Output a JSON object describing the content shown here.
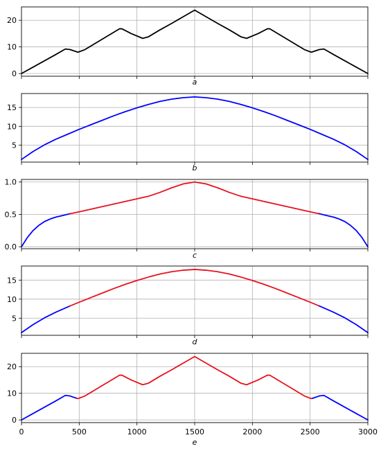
{
  "chart_data": [
    {
      "type": "line",
      "label": "a",
      "xlim": [
        0,
        3000
      ],
      "ylim": [
        -1,
        25
      ],
      "yticks": [
        0,
        10,
        20
      ],
      "ytick_labels": [
        "0",
        "10",
        "20"
      ],
      "xticks": [
        0,
        500,
        1000,
        1500,
        2000,
        2500,
        3000
      ],
      "xtick_labels": [],
      "grid": true,
      "series": [
        {
          "color": "#000000",
          "x": [
            0,
            100,
            200,
            300,
            380,
            420,
            490,
            550,
            650,
            750,
            850,
            870,
            950,
            1050,
            1100,
            1200,
            1300,
            1400,
            1500,
            1600,
            1700,
            1800,
            1900,
            1950,
            2050,
            2130,
            2150,
            2250,
            2350,
            2450,
            2510,
            2580,
            2620,
            2700,
            2800,
            2900,
            3000
          ],
          "y": [
            0,
            2.4,
            4.8,
            7.2,
            9.2,
            9.0,
            8.0,
            9.0,
            11.6,
            14.2,
            16.8,
            16.8,
            15.0,
            13.2,
            13.8,
            16.4,
            18.8,
            21.3,
            23.8,
            21.3,
            18.8,
            16.4,
            13.8,
            13.2,
            15.0,
            16.8,
            16.8,
            14.2,
            11.6,
            9.0,
            8.0,
            9.0,
            9.2,
            7.2,
            4.8,
            2.4,
            0
          ]
        }
      ]
    },
    {
      "type": "line",
      "label": "b",
      "xlim": [
        0,
        3000
      ],
      "ylim": [
        0.5,
        18.7
      ],
      "yticks": [
        5,
        10,
        15
      ],
      "ytick_labels": [
        "5",
        "10",
        "15"
      ],
      "xticks": [
        0,
        500,
        1000,
        1500,
        2000,
        2500,
        3000
      ],
      "xtick_labels": [],
      "grid": true,
      "series": [
        {
          "color": "#0000ff",
          "x": [
            0,
            100,
            200,
            300,
            400,
            500,
            600,
            700,
            800,
            900,
            1000,
            1100,
            1200,
            1300,
            1400,
            1500,
            1600,
            1700,
            1800,
            1900,
            2000,
            2100,
            2200,
            2300,
            2400,
            2500,
            2600,
            2700,
            2800,
            2900,
            3000
          ],
          "y": [
            1.2,
            3.3,
            5.1,
            6.6,
            7.9,
            9.2,
            10.4,
            11.6,
            12.8,
            13.9,
            14.9,
            15.8,
            16.6,
            17.2,
            17.6,
            17.8,
            17.6,
            17.2,
            16.6,
            15.8,
            14.9,
            13.9,
            12.8,
            11.6,
            10.4,
            9.2,
            7.9,
            6.6,
            5.1,
            3.3,
            1.2
          ]
        }
      ]
    },
    {
      "type": "line",
      "label": "c",
      "xlim": [
        0,
        3000
      ],
      "ylim": [
        -0.03,
        1.04
      ],
      "yticks": [
        0,
        0.5,
        1.0
      ],
      "ytick_labels": [
        "0.0",
        "0.5",
        "1.0"
      ],
      "xticks": [
        0,
        500,
        1000,
        1500,
        2000,
        2500,
        3000
      ],
      "xtick_labels": [],
      "grid": true,
      "series": [
        {
          "color": "#0000ff",
          "x": [
            0,
            50,
            100,
            150,
            200,
            250,
            300,
            350,
            420
          ],
          "y": [
            0,
            0.14,
            0.25,
            0.33,
            0.39,
            0.43,
            0.46,
            0.48,
            0.51
          ]
        },
        {
          "color": "#e8101c",
          "x": [
            420,
            500,
            600,
            700,
            800,
            900,
            1000,
            1100,
            1200,
            1300,
            1400,
            1500,
            1600,
            1700,
            1800,
            1900,
            2000,
            2100,
            2200,
            2300,
            2400,
            2500,
            2580
          ],
          "y": [
            0.51,
            0.54,
            0.58,
            0.62,
            0.66,
            0.7,
            0.74,
            0.78,
            0.84,
            0.91,
            0.97,
            1.0,
            0.97,
            0.91,
            0.84,
            0.78,
            0.74,
            0.7,
            0.66,
            0.62,
            0.58,
            0.54,
            0.51
          ]
        },
        {
          "color": "#0000ff",
          "x": [
            2580,
            2650,
            2700,
            2750,
            2800,
            2850,
            2900,
            2950,
            3000
          ],
          "y": [
            0.51,
            0.48,
            0.46,
            0.43,
            0.39,
            0.33,
            0.25,
            0.14,
            0
          ]
        }
      ]
    },
    {
      "type": "line",
      "label": "d",
      "xlim": [
        0,
        3000
      ],
      "ylim": [
        0.5,
        18.7
      ],
      "yticks": [
        5,
        10,
        15
      ],
      "ytick_labels": [
        "5",
        "10",
        "15"
      ],
      "xticks": [
        0,
        500,
        1000,
        1500,
        2000,
        2500,
        3000
      ],
      "xtick_labels": [],
      "grid": true,
      "series": [
        {
          "color": "#0000ff",
          "x": [
            0,
            100,
            200,
            300,
            420
          ],
          "y": [
            1.2,
            3.3,
            5.1,
            6.6,
            8.2
          ]
        },
        {
          "color": "#e8101c",
          "x": [
            420,
            500,
            600,
            700,
            800,
            900,
            1000,
            1100,
            1200,
            1300,
            1400,
            1500,
            1600,
            1700,
            1800,
            1900,
            2000,
            2100,
            2200,
            2300,
            2400,
            2500,
            2580
          ],
          "y": [
            8.2,
            9.2,
            10.4,
            11.6,
            12.8,
            13.9,
            14.9,
            15.8,
            16.6,
            17.2,
            17.6,
            17.8,
            17.6,
            17.2,
            16.6,
            15.8,
            14.9,
            13.9,
            12.8,
            11.6,
            10.4,
            9.2,
            8.2
          ]
        },
        {
          "color": "#0000ff",
          "x": [
            2580,
            2700,
            2800,
            2900,
            3000
          ],
          "y": [
            8.2,
            6.6,
            5.1,
            3.3,
            1.2
          ]
        }
      ]
    },
    {
      "type": "line",
      "label": "e",
      "xlim": [
        0,
        3000
      ],
      "ylim": [
        -1,
        25
      ],
      "yticks": [
        0,
        10,
        20
      ],
      "ytick_labels": [
        "0",
        "10",
        "20"
      ],
      "xticks": [
        0,
        500,
        1000,
        1500,
        2000,
        2500,
        3000
      ],
      "xtick_labels": [
        "0",
        "500",
        "1000",
        "1500",
        "2000",
        "2500",
        "3000"
      ],
      "grid": true,
      "series": [
        {
          "color": "#0000ff",
          "x": [
            0,
            100,
            200,
            300,
            380,
            420,
            480
          ],
          "y": [
            0,
            2.4,
            4.8,
            7.2,
            9.2,
            9.0,
            8.1
          ]
        },
        {
          "color": "#e8101c",
          "x": [
            480,
            490,
            550,
            650,
            750,
            850,
            870,
            950,
            1050,
            1100,
            1200,
            1300,
            1400,
            1500,
            1600,
            1700,
            1800,
            1900,
            1950,
            2050,
            2130,
            2150,
            2250,
            2350,
            2450,
            2510,
            2520
          ],
          "y": [
            8.1,
            8.0,
            9.0,
            11.6,
            14.2,
            16.8,
            16.8,
            15.0,
            13.2,
            13.8,
            16.4,
            18.8,
            21.3,
            23.8,
            21.3,
            18.8,
            16.4,
            13.8,
            13.2,
            15.0,
            16.8,
            16.8,
            14.2,
            11.6,
            9.0,
            8.0,
            8.1
          ]
        },
        {
          "color": "#0000ff",
          "x": [
            2520,
            2580,
            2620,
            2700,
            2800,
            2900,
            3000
          ],
          "y": [
            8.1,
            9.0,
            9.2,
            7.2,
            4.8,
            2.4,
            0
          ]
        }
      ]
    }
  ]
}
